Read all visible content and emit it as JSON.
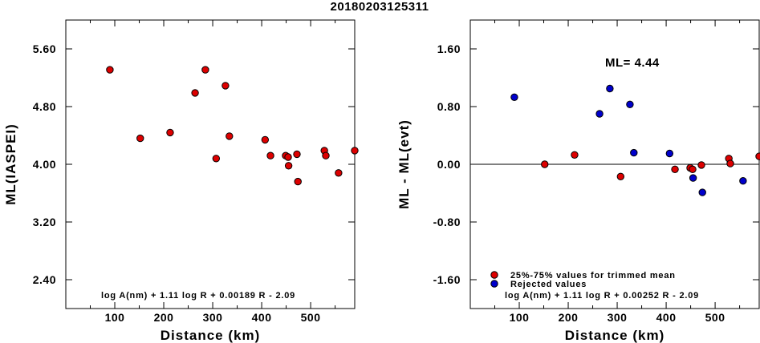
{
  "page_title": "20180203125311",
  "chart_data": [
    {
      "type": "scatter",
      "xlabel": "Distance (km)",
      "ylabel": "ML(IASPEI)",
      "xlim": [
        0,
        590
      ],
      "ylim": [
        2.0,
        6.0
      ],
      "x_ticks": [
        100,
        200,
        300,
        400,
        500
      ],
      "y_ticks": [
        2.4,
        3.2,
        4.0,
        4.8,
        5.6
      ],
      "y_tick_labels": [
        "2.40",
        "3.20",
        "4.00",
        "4.80",
        "5.60"
      ],
      "formula": "log A(nm) + 1.11 log R + 0.00189 R - 2.09",
      "marker_color": "#dd0000",
      "series": [
        {
          "points": [
            [
              90,
              5.31
            ],
            [
              152,
              4.36
            ],
            [
              213,
              4.44
            ],
            [
              264,
              4.99
            ],
            [
              285,
              5.31
            ],
            [
              307,
              4.08
            ],
            [
              326,
              5.09
            ],
            [
              334,
              4.39
            ],
            [
              407,
              4.34
            ],
            [
              418,
              4.12
            ],
            [
              449,
              4.12
            ],
            [
              454,
              4.1
            ],
            [
              455,
              3.98
            ],
            [
              472,
              4.14
            ],
            [
              474,
              3.76
            ],
            [
              528,
              4.19
            ],
            [
              531,
              4.12
            ],
            [
              557,
              3.88
            ],
            [
              590,
              4.19
            ]
          ]
        }
      ]
    },
    {
      "type": "scatter",
      "xlabel": "Distance (km)",
      "ylabel": "ML - ML(evt)",
      "xlim": [
        0,
        590
      ],
      "ylim": [
        -2.0,
        2.0
      ],
      "x_ticks": [
        100,
        200,
        300,
        400,
        500
      ],
      "y_ticks": [
        -1.6,
        -0.8,
        0.0,
        0.8,
        1.6
      ],
      "y_tick_labels": [
        "-1.60",
        "-0.80",
        "0.00",
        "0.80",
        "1.60"
      ],
      "annotation": "ML= 4.44",
      "formula": "log A(nm) + 1.11 log R + 0.00252 R - 2.09",
      "legend_position": "bottom-left",
      "series": [
        {
          "name": "25%-75% values for trimmed mean",
          "color": "#dd0000",
          "points": [
            [
              152,
              0.0
            ],
            [
              213,
              0.13
            ],
            [
              307,
              -0.17
            ],
            [
              418,
              -0.07
            ],
            [
              449,
              -0.05
            ],
            [
              454,
              -0.07
            ],
            [
              472,
              -0.01
            ],
            [
              528,
              0.08
            ],
            [
              531,
              0.01
            ],
            [
              590,
              0.11
            ]
          ]
        },
        {
          "name": "Rejected values",
          "color": "#0000cc",
          "points": [
            [
              90,
              0.93
            ],
            [
              264,
              0.7
            ],
            [
              285,
              1.05
            ],
            [
              326,
              0.83
            ],
            [
              334,
              0.16
            ],
            [
              407,
              0.15
            ],
            [
              455,
              -0.19
            ],
            [
              474,
              -0.39
            ],
            [
              557,
              -0.23
            ]
          ]
        }
      ]
    }
  ]
}
